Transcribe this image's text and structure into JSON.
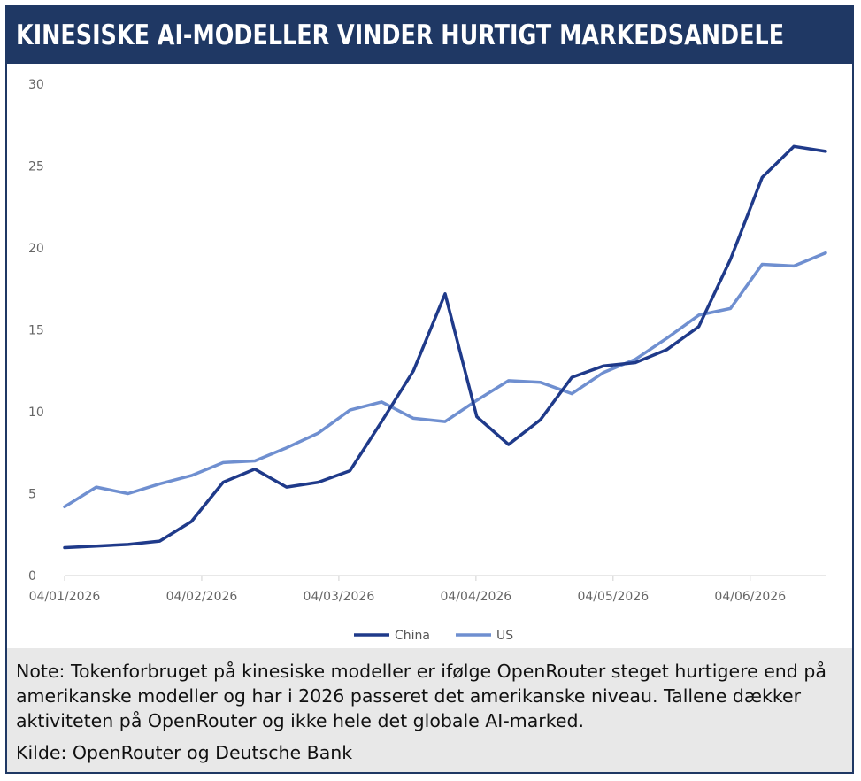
{
  "title": "KINESISKE AI-MODELLER VINDER HURTIGT MARKEDSANDELE",
  "note": "Note: Tokenforbruget på kinesiske modeller er ifølge OpenRouter steget hurtigere end på amerikanske modeller og har i 2026 passeret det amerikanske niveau. Tallene dækker aktiviteten på OpenRouter og ikke hele det globale AI-marked.",
  "source": "Kilde: OpenRouter og Deutsche Bank",
  "colors": {
    "header": "#1f3864",
    "china": "#1f3a8a",
    "us": "#6f8fd0",
    "note_bg": "#e8e8e8"
  },
  "chart_data": {
    "type": "line",
    "ylim": [
      0,
      30
    ],
    "yticks": [
      0,
      5,
      10,
      15,
      20,
      25,
      30
    ],
    "xticks": [
      "04/01/2026",
      "04/02/2026",
      "04/03/2026",
      "04/04/2026",
      "04/05/2026",
      "04/06/2026"
    ],
    "x_range_points": 25,
    "grid": false,
    "legend": "bottom-center",
    "series": [
      {
        "name": "China",
        "values": [
          1.7,
          1.8,
          1.9,
          2.1,
          3.3,
          5.7,
          6.5,
          5.4,
          5.7,
          6.4,
          9.4,
          12.5,
          17.2,
          9.7,
          8.0,
          9.5,
          12.1,
          12.8,
          13.0,
          13.8,
          15.2,
          19.3,
          24.3,
          26.2,
          25.9
        ]
      },
      {
        "name": "US",
        "values": [
          4.2,
          5.4,
          5.0,
          5.6,
          6.1,
          6.9,
          7.0,
          7.8,
          8.7,
          10.1,
          10.6,
          9.6,
          9.4,
          10.7,
          11.9,
          11.8,
          11.1,
          12.4,
          13.2,
          14.5,
          15.9,
          16.3,
          19.0,
          18.9,
          19.7
        ]
      }
    ]
  }
}
